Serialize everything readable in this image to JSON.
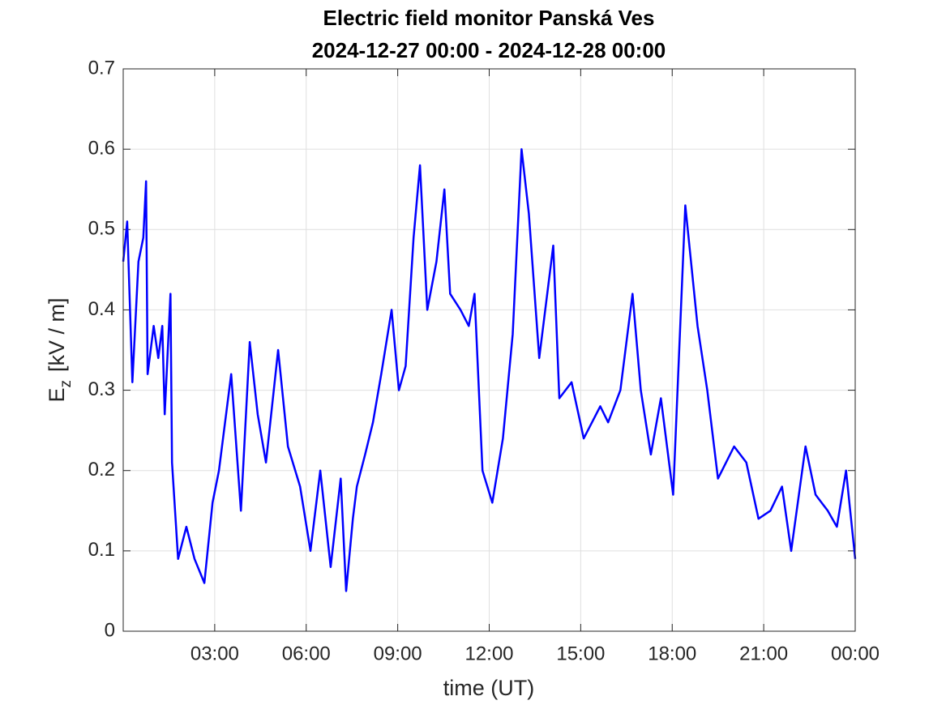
{
  "chart_data": {
    "type": "line",
    "title": [
      "Electric field monitor Panská Ves",
      "2024-12-27 00:00 - 2024-12-28 00:00"
    ],
    "xlabel": "time (UT)",
    "ylabel": [
      "E",
      "z",
      "[kV / m]"
    ],
    "xlim": [
      0,
      24
    ],
    "xticks": [
      {
        "value": 3,
        "label": "03:00"
      },
      {
        "value": 6,
        "label": "06:00"
      },
      {
        "value": 9,
        "label": "09:00"
      },
      {
        "value": 12,
        "label": "12:00"
      },
      {
        "value": 15,
        "label": "15:00"
      },
      {
        "value": 18,
        "label": "18:00"
      },
      {
        "value": 21,
        "label": "21:00"
      },
      {
        "value": 24,
        "label": "00:00"
      }
    ],
    "ylim": [
      0,
      0.7
    ],
    "yticks": [
      0,
      0.1,
      0.2,
      0.3,
      0.4,
      0.5,
      0.6,
      0.7
    ],
    "grid": true,
    "series": [
      {
        "color": "#0000ff",
        "x": [
          0,
          0.13,
          0.3,
          0.5,
          0.66,
          0.75,
          0.8,
          1.0,
          1.15,
          1.28,
          1.36,
          1.55,
          1.6,
          1.8,
          2.07,
          2.34,
          2.66,
          2.93,
          3.14,
          3.54,
          3.86,
          4.15,
          4.41,
          4.68,
          5.08,
          5.4,
          5.8,
          6.14,
          6.46,
          6.8,
          7.13,
          7.31,
          7.53,
          7.66,
          7.93,
          8.19,
          8.46,
          8.8,
          9.04,
          9.26,
          9.52,
          9.73,
          9.97,
          10.27,
          10.53,
          10.72,
          11.06,
          11.33,
          11.52,
          11.78,
          12.1,
          12.45,
          12.77,
          13.06,
          13.3,
          13.64,
          14.1,
          14.3,
          14.7,
          15.1,
          15.64,
          15.9,
          16.3,
          16.7,
          16.97,
          17.3,
          17.63,
          18.03,
          18.43,
          18.83,
          19.15,
          19.5,
          20.03,
          20.43,
          20.83,
          21.22,
          21.6,
          21.9,
          22.37,
          22.7,
          23.1,
          23.4,
          23.7,
          24
        ],
        "values": [
          0.46,
          0.51,
          0.31,
          0.46,
          0.49,
          0.56,
          0.32,
          0.38,
          0.34,
          0.38,
          0.27,
          0.42,
          0.21,
          0.09,
          0.13,
          0.09,
          0.06,
          0.16,
          0.2,
          0.32,
          0.15,
          0.36,
          0.27,
          0.21,
          0.35,
          0.23,
          0.18,
          0.1,
          0.2,
          0.08,
          0.19,
          0.05,
          0.14,
          0.18,
          0.22,
          0.26,
          0.32,
          0.4,
          0.3,
          0.33,
          0.49,
          0.58,
          0.4,
          0.46,
          0.55,
          0.42,
          0.4,
          0.38,
          0.42,
          0.2,
          0.16,
          0.24,
          0.37,
          0.6,
          0.52,
          0.34,
          0.48,
          0.29,
          0.31,
          0.24,
          0.28,
          0.26,
          0.3,
          0.42,
          0.3,
          0.22,
          0.29,
          0.17,
          0.53,
          0.38,
          0.3,
          0.19,
          0.23,
          0.21,
          0.14,
          0.15,
          0.18,
          0.1,
          0.23,
          0.17,
          0.15,
          0.13,
          0.2,
          0.09
        ]
      }
    ]
  }
}
